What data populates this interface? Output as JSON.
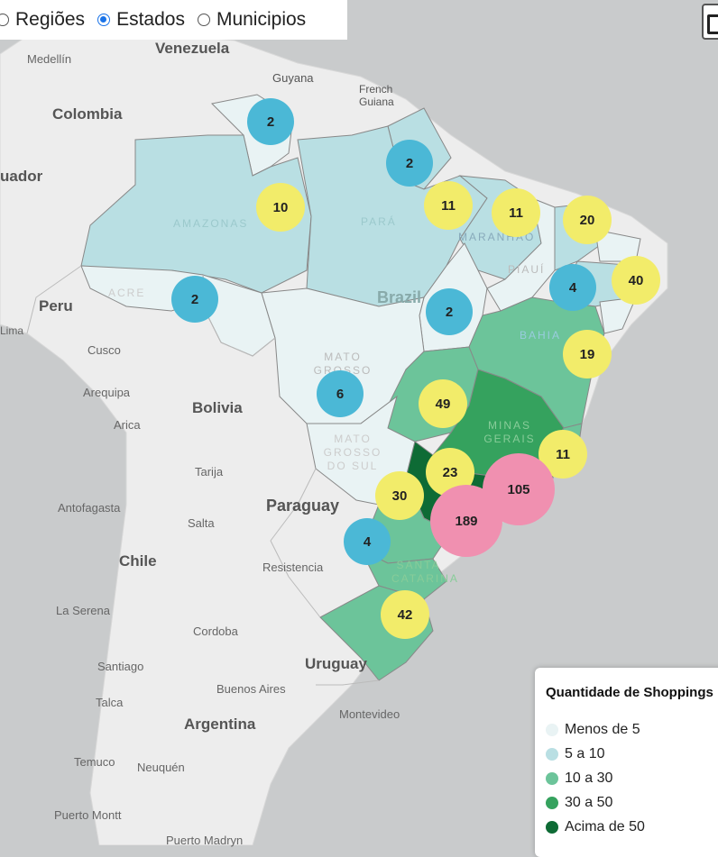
{
  "radio": {
    "options": [
      "Regiões",
      "Estados",
      "Municipios"
    ],
    "selected": "Estados"
  },
  "legend": {
    "title": "Quantidade de Shoppings",
    "items": [
      {
        "label": "Menos de 5",
        "color": "#e9f3f4"
      },
      {
        "label": "5 a 10",
        "color": "#b9dfe3"
      },
      {
        "label": "10 a 30",
        "color": "#6cc49a"
      },
      {
        "label": "30 a 50",
        "color": "#35a25e"
      },
      {
        "label": "Acima de 50",
        "color": "#0e6b35"
      }
    ]
  },
  "colors": {
    "water": "#c9cbcc",
    "land": "#ededed",
    "cluster_small": "#4bb8d6",
    "cluster_medium": "#f2ec6a",
    "cluster_large": "#f090b0"
  },
  "clusters": [
    {
      "id": "roraima",
      "count": "2",
      "size": "small"
    },
    {
      "id": "amapa",
      "count": "2",
      "size": "small"
    },
    {
      "id": "amazonas",
      "count": "10",
      "size": "medium"
    },
    {
      "id": "para",
      "count": "11",
      "size": "medium"
    },
    {
      "id": "maranhao",
      "count": "11",
      "size": "medium"
    },
    {
      "id": "ceara",
      "count": "20",
      "size": "medium"
    },
    {
      "id": "rio-grande-do-norte",
      "count": "4",
      "size": "small"
    },
    {
      "id": "pernambuco",
      "count": "40",
      "size": "medium"
    },
    {
      "id": "acre",
      "count": "2",
      "size": "small"
    },
    {
      "id": "tocantins",
      "count": "2",
      "size": "small"
    },
    {
      "id": "bahia",
      "count": "19",
      "size": "medium"
    },
    {
      "id": "mato-grosso",
      "count": "6",
      "size": "small"
    },
    {
      "id": "goias",
      "count": "49",
      "size": "medium"
    },
    {
      "id": "espirito-santo",
      "count": "11",
      "size": "medium"
    },
    {
      "id": "minas-gerais",
      "count": "23",
      "size": "medium"
    },
    {
      "id": "rio-de-janeiro",
      "count": "105",
      "size": "large"
    },
    {
      "id": "parana",
      "count": "30",
      "size": "medium"
    },
    {
      "id": "sao-paulo",
      "count": "189",
      "size": "large"
    },
    {
      "id": "santa-catarina",
      "count": "4",
      "size": "small"
    },
    {
      "id": "rio-grande-do-sul",
      "count": "42",
      "size": "medium"
    }
  ],
  "place_labels": {
    "venezuela": "Venezuela",
    "medellin": "Medellín",
    "guyana": "Guyana",
    "french_guiana": "French Guiana",
    "colombia": "Colombia",
    "ecuador": "uador",
    "peru": "Peru",
    "lima": "Lima",
    "cusco": "Cusco",
    "arequipa": "Arequipa",
    "arica": "Arica",
    "bolivia": "Bolivia",
    "tarija": "Tarija",
    "antofagasta": "Antofagasta",
    "salta": "Salta",
    "paraguay": "Paraguay",
    "resistencia": "Resistencia",
    "chile": "Chile",
    "la_serena": "La Serena",
    "cordoba": "Cordoba",
    "santiago": "Santiago",
    "talca": "Talca",
    "buenos_aires": "Buenos Aires",
    "uruguay": "Uruguay",
    "montevideo": "Montevideo",
    "argentina": "Argentina",
    "temuco": "Temuco",
    "neuquen": "Neuquén",
    "puerto_montt": "Puerto Montt",
    "puerto_madryn": "Puerto Madryn",
    "brazil": "Brazil"
  },
  "state_labels": {
    "amazonas": "AMAZONAS",
    "para": "PARÁ",
    "maranhao": "MARANHÃO",
    "piaui": "PIAUÍ",
    "acre": "ACRE",
    "bahia": "BAHIA",
    "mato_grosso": "MATO GROSSO",
    "minas_gerais": "MINAS GERAIS",
    "mato_grosso_do_sul": "MATO GROSSO DO SUL",
    "santa_catarina": "SANTA CATARINA"
  }
}
